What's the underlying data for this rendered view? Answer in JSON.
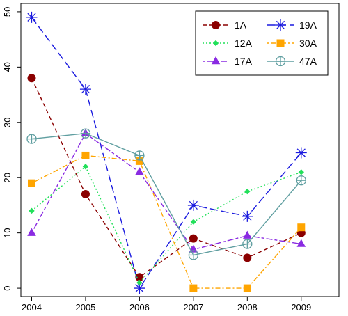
{
  "chart_data": {
    "type": "line",
    "title": "",
    "xlabel": "",
    "ylabel": "",
    "x": [
      2004,
      2005,
      2006,
      2007,
      2008,
      2009
    ],
    "xticks": [
      "2004",
      "2005",
      "2006",
      "2007",
      "2008",
      "2009"
    ],
    "xlim": [
      2003.8,
      2009.7
    ],
    "ylim": [
      -1.5,
      51.5
    ],
    "yticks": [
      "0",
      "10",
      "20",
      "30",
      "40",
      "50"
    ],
    "grid": false,
    "legend": {
      "position": "top-right",
      "columns": 2,
      "order": [
        "1A",
        "12A",
        "17A",
        "19A",
        "30A",
        "47A"
      ]
    },
    "series": [
      {
        "name": "1A",
        "color": "#8b0000",
        "dash": "dashed",
        "marker": "circle",
        "values": [
          38,
          17,
          2,
          9,
          5.5,
          10
        ]
      },
      {
        "name": "19A",
        "color": "#1a1adf",
        "dash": "longdash",
        "marker": "asterisk",
        "values": [
          49,
          36,
          0,
          15,
          13,
          24.5
        ]
      },
      {
        "name": "12A",
        "color": "#22e05a",
        "dash": "dotted",
        "marker": "diamond",
        "values": [
          14,
          22,
          1,
          12,
          17.5,
          21
        ]
      },
      {
        "name": "30A",
        "color": "#ffa500",
        "dash": "dotdash",
        "marker": "square",
        "values": [
          19,
          24,
          23,
          0,
          0,
          11
        ]
      },
      {
        "name": "17A",
        "color": "#8a2be2",
        "dash": "twodash",
        "marker": "triangle",
        "values": [
          10,
          28,
          21,
          7,
          9.5,
          8
        ]
      },
      {
        "name": "47A",
        "color": "#5f9ea0",
        "dash": "solid",
        "marker": "circle-plus",
        "values": [
          27,
          28,
          24,
          6,
          8,
          19.5
        ]
      }
    ]
  }
}
